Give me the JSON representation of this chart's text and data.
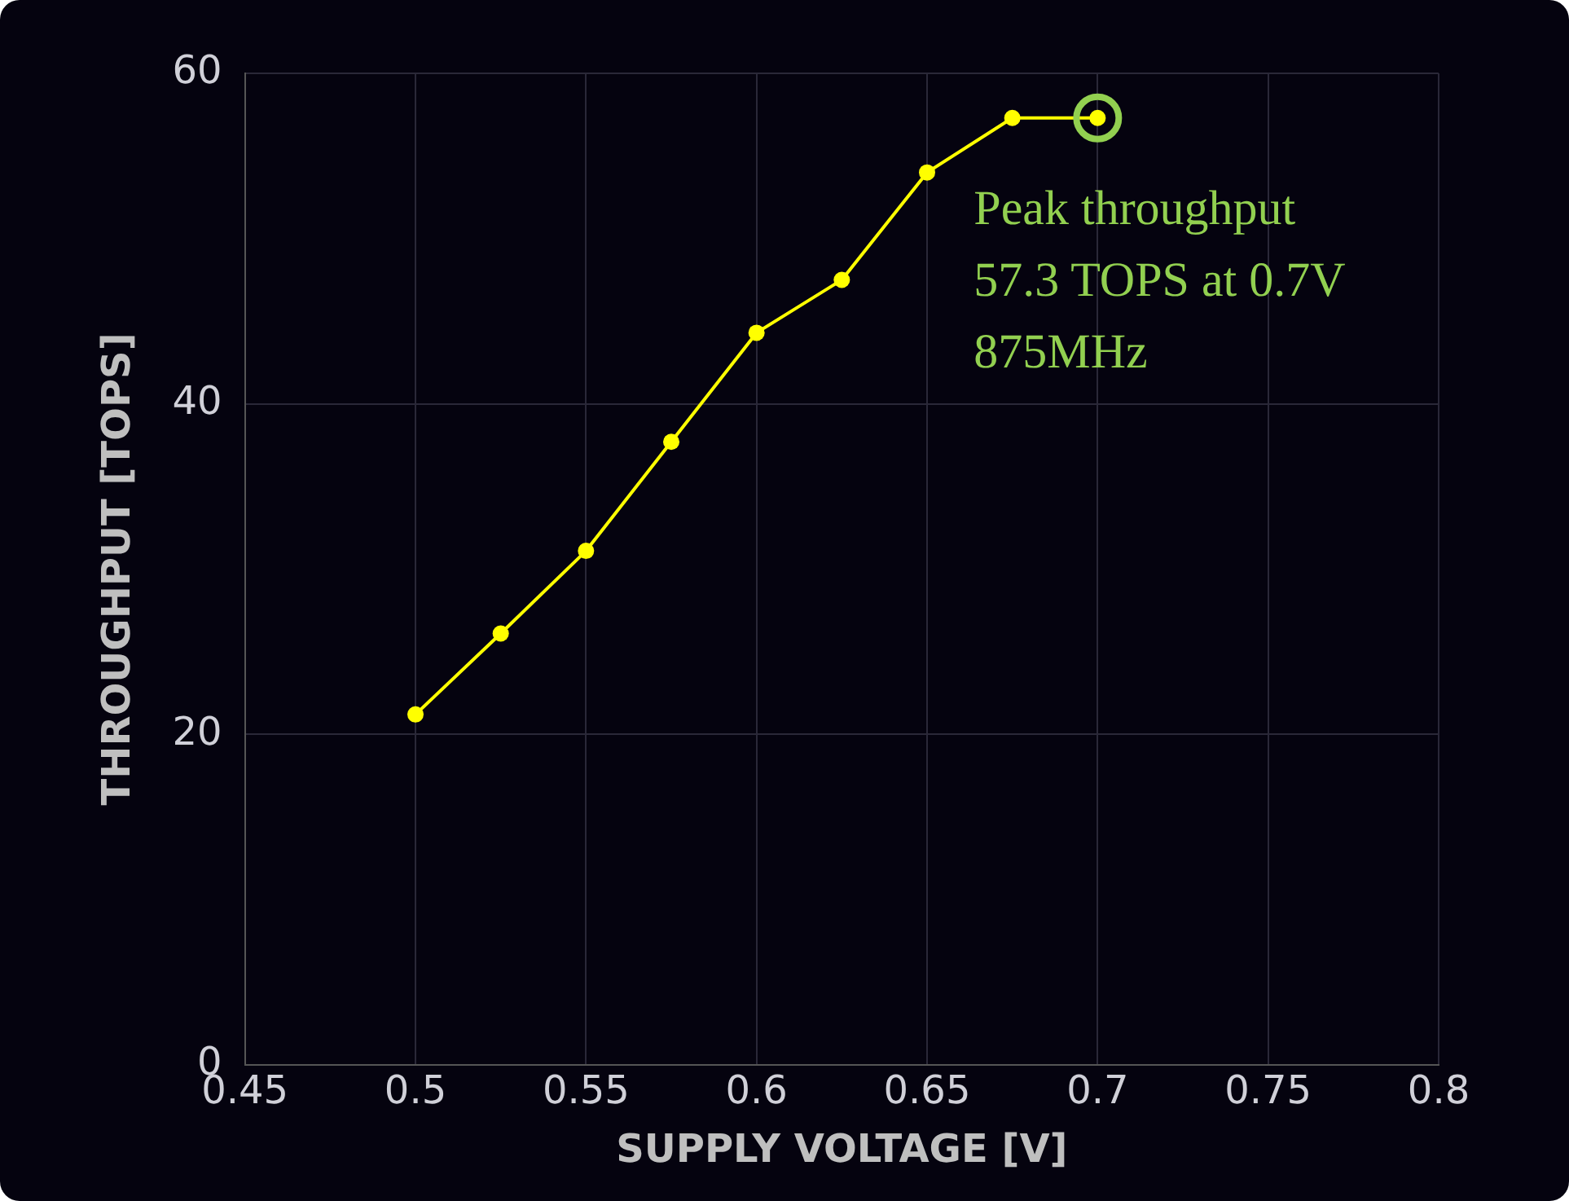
{
  "chart_data": {
    "type": "line",
    "xlabel": "SUPPLY VOLTAGE [V]",
    "ylabel": "THROUGHPUT [TOPS]",
    "x": [
      0.5,
      0.525,
      0.55,
      0.575,
      0.6,
      0.625,
      0.65,
      0.675,
      0.7
    ],
    "series": [
      {
        "color": "#ffff00",
        "values": [
          21.2,
          26.1,
          31.1,
          37.7,
          44.3,
          47.5,
          54.0,
          57.3,
          57.3
        ]
      }
    ],
    "xlim": [
      0.45,
      0.8
    ],
    "xticks": [
      0.45,
      0.5,
      0.55,
      0.6,
      0.65,
      0.7,
      0.75,
      0.8
    ],
    "ylim": [
      0,
      60
    ],
    "yticks": [
      0,
      20,
      40,
      60
    ],
    "grid": true,
    "legend": false,
    "marker": "circle",
    "line_style": "solid",
    "annotations": [
      {
        "text": "Peak throughput\n57.3 TOPS at 0.7V\n875MHz",
        "x": 0.7,
        "y": 57.3
      }
    ]
  }
}
